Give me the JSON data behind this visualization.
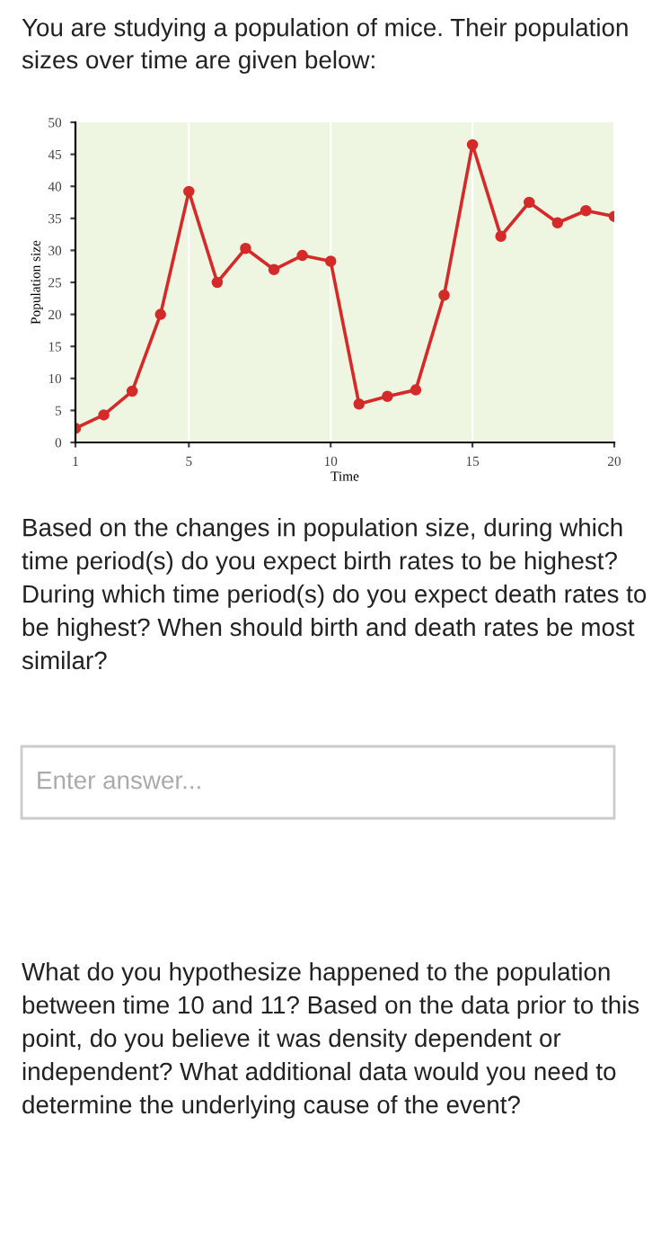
{
  "chart_data": {
    "type": "line",
    "title": "You are studying a population of mice. Their population sizes over time are given below:",
    "xlabel": "Time",
    "ylabel": "Population size",
    "x": [
      1,
      2,
      3,
      4,
      5,
      6,
      7,
      8,
      9,
      10,
      11,
      12,
      13,
      14,
      15,
      16,
      17,
      18,
      19,
      20
    ],
    "series": [
      {
        "color": "#d42a2a",
        "values": [
          2.2,
          4.3,
          8,
          20,
          39.2,
          25,
          30.3,
          27,
          29.2,
          28.3,
          6,
          7.2,
          8.2,
          23,
          46.5,
          32.2,
          37.5,
          34.3,
          36.2,
          35.3
        ]
      }
    ],
    "xlim": [
      1,
      20
    ],
    "xticks": [
      1,
      5,
      10,
      15,
      20
    ],
    "ylim": [
      0,
      50
    ],
    "yticks": [
      0,
      5,
      10,
      15,
      20,
      25,
      30,
      35,
      40,
      45,
      50
    ],
    "marker": "circle",
    "line_style": "solid",
    "grid": "x",
    "annotations": [
      "Based on the changes in population size, during which time period(s) do you expect birth rates to be highest? During which time period(s) do you expect death rates to be highest? When should birth and death rates be most similar?",
      "Enter answer...",
      "What do you hypothesize happened to the population between time 10 and 11? Based on the data prior to this point, do you believe it was density dependent or independent? What additional data would you need to determine the underlying cause of the event?"
    ]
  }
}
